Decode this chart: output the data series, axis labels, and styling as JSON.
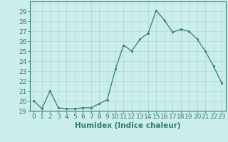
{
  "x": [
    0,
    1,
    2,
    3,
    4,
    5,
    6,
    7,
    8,
    9,
    10,
    11,
    12,
    13,
    14,
    15,
    16,
    17,
    18,
    19,
    20,
    21,
    22,
    23
  ],
  "y": [
    20.0,
    19.2,
    21.0,
    19.3,
    19.2,
    19.2,
    19.3,
    19.3,
    19.7,
    20.1,
    23.2,
    25.6,
    25.0,
    26.2,
    26.8,
    29.1,
    28.1,
    26.9,
    27.2,
    27.0,
    26.2,
    25.0,
    23.5,
    21.8
  ],
  "xlabel": "Humidex (Indice chaleur)",
  "ylim": [
    19,
    30
  ],
  "xlim": [
    -0.5,
    23.5
  ],
  "yticks": [
    19,
    20,
    21,
    22,
    23,
    24,
    25,
    26,
    27,
    28,
    29
  ],
  "xticks": [
    0,
    1,
    2,
    3,
    4,
    5,
    6,
    7,
    8,
    9,
    10,
    11,
    12,
    13,
    14,
    15,
    16,
    17,
    18,
    19,
    20,
    21,
    22,
    23
  ],
  "line_color": "#2e7d6e",
  "marker_color": "#2e7d6e",
  "bg_color": "#cceeea",
  "grid_color": "#aad8d3",
  "axis_color": "#2e7d6e",
  "tick_color": "#2e7d6e",
  "xlabel_color": "#2e7d6e",
  "xlabel_fontsize": 7.5,
  "tick_fontsize": 6.5
}
